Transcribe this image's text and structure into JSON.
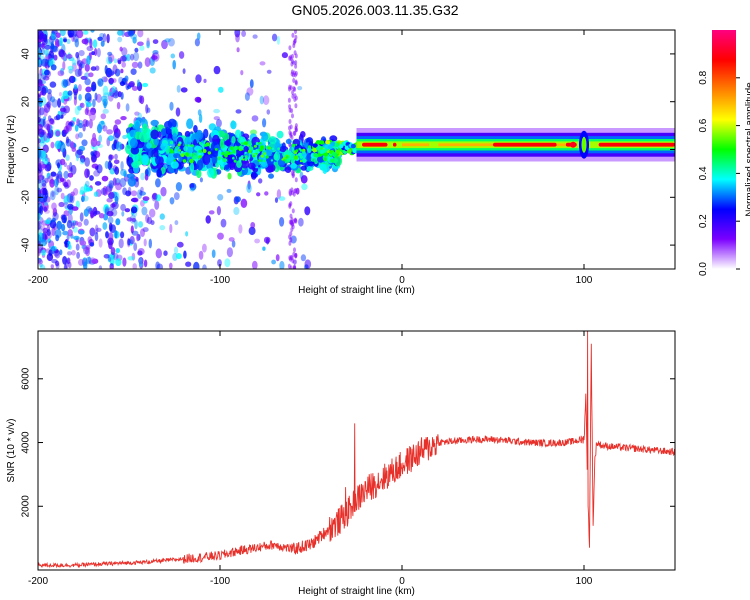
{
  "title": "GN05.2026.003.11.35.G32",
  "colors": {
    "plot_border": "#000000",
    "snr_line": "#e8302a"
  },
  "chart_data": [
    {
      "type": "heatmap",
      "name": "spectrogram",
      "xlabel": "Height of straight line (km)",
      "ylabel": "Frequency (Hz)",
      "xlim": [
        -200,
        150
      ],
      "ylim": [
        -50,
        50
      ],
      "xticks": [
        -200,
        -100,
        0,
        100
      ],
      "xtick_labels": [
        "-200",
        "-100",
        "0",
        "100"
      ],
      "yticks": [
        -40,
        -20,
        0,
        20,
        40
      ],
      "ytick_labels": [
        "-40",
        "-20",
        "0",
        "20",
        "40"
      ],
      "description_points": [
        {
          "h": -200,
          "f_center": 0,
          "spread": 50,
          "amp": 0.25
        },
        {
          "h": -120,
          "f_center": 0,
          "spread": 10,
          "amp": 0.4
        },
        {
          "h": -60,
          "f_center": -2,
          "spread": 8,
          "amp": 0.35
        },
        {
          "h": -20,
          "f_center": 1,
          "spread": 2,
          "amp": 0.95
        },
        {
          "h": 50,
          "f_center": 2,
          "spread": 2,
          "amp": 0.7
        },
        {
          "h": 100,
          "f_center": 2,
          "spread": 10,
          "amp": 0.9
        },
        {
          "h": 150,
          "f_center": 2,
          "spread": 2,
          "amp": 0.85
        }
      ],
      "colorbar": {
        "label": "Normalized spectral amplitude",
        "range": [
          0,
          1
        ],
        "ticks": [
          0.0,
          0.2,
          0.4,
          0.6,
          0.8
        ],
        "tick_labels": [
          "0.0",
          "0.2",
          "0.4",
          "0.6",
          "0.8"
        ],
        "colors": [
          "#ffffff",
          "#7b00ff",
          "#0000ff",
          "#00ffff",
          "#00ff00",
          "#ffff00",
          "#ff8000",
          "#ff0000",
          "#ff0080"
        ]
      }
    },
    {
      "type": "line",
      "name": "snr",
      "xlabel": "Height of straight line (km)",
      "ylabel": "SNR (10 * v/v)",
      "xlim": [
        -200,
        150
      ],
      "ylim": [
        0,
        7500
      ],
      "xticks": [
        -200,
        -100,
        0,
        100
      ],
      "xtick_labels": [
        "-200",
        "-100",
        "0",
        "100"
      ],
      "yticks": [
        2000,
        4000,
        6000
      ],
      "ytick_labels": [
        "2000",
        "4000",
        "6000"
      ],
      "x": [
        -200,
        -180,
        -160,
        -140,
        -120,
        -100,
        -90,
        -80,
        -70,
        -60,
        -50,
        -40,
        -35,
        -30,
        -25,
        -20,
        -15,
        -10,
        -5,
        0,
        10,
        20,
        30,
        40,
        50,
        60,
        70,
        80,
        90,
        95,
        100,
        101,
        102,
        103,
        104,
        105,
        106,
        107,
        110,
        120,
        130,
        140,
        150
      ],
      "y": [
        150,
        150,
        200,
        250,
        350,
        450,
        600,
        700,
        800,
        650,
        800,
        1300,
        1500,
        1800,
        2200,
        2500,
        2700,
        2900,
        3100,
        3300,
        3700,
        4000,
        4050,
        4100,
        4100,
        4050,
        4000,
        3980,
        4000,
        4050,
        4100,
        5500,
        2500,
        800,
        7000,
        1500,
        3500,
        4000,
        3900,
        3850,
        3800,
        3750,
        3700
      ],
      "spikes": [
        {
          "x": -26,
          "y": 4600
        },
        {
          "x": -31,
          "y": 2600
        },
        {
          "x": 102,
          "y": 7500
        },
        {
          "x": 104,
          "y": 7100
        },
        {
          "x": 103,
          "y": 700
        }
      ]
    }
  ]
}
